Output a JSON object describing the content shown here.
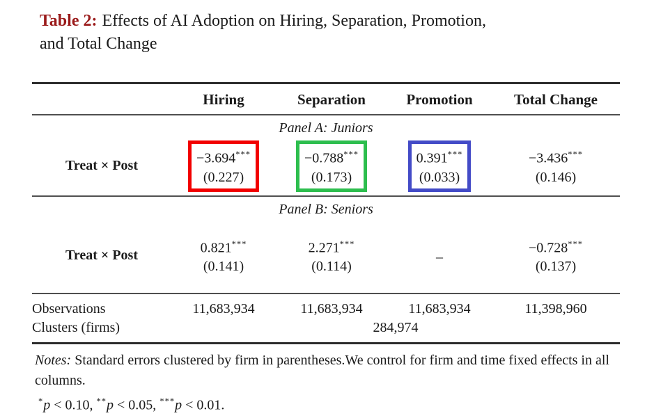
{
  "colors": {
    "title_accent": "#9a1a1a",
    "box_red": "#f20000",
    "box_green": "#2dbe4e",
    "box_blue": "#434bc7",
    "rule_dark": "#2d2d2d"
  },
  "title": {
    "prefix": "Table 2:",
    "line1": "Effects of AI Adoption on Hiring, Separation, Promotion,",
    "line2": "and Total Change"
  },
  "columns": [
    "Hiring",
    "Separation",
    "Promotion",
    "Total Change"
  ],
  "panel_a": {
    "label": "Panel A: Juniors",
    "row_label": "Treat × Post",
    "cells": [
      {
        "coef": "−3.694",
        "stars": "***",
        "se": "(0.227)",
        "box_color": "#f20000"
      },
      {
        "coef": "−0.788",
        "stars": "***",
        "se": "(0.173)",
        "box_color": "#2dbe4e"
      },
      {
        "coef": "0.391",
        "stars": "***",
        "se": "(0.033)",
        "box_color": "#434bc7"
      },
      {
        "coef": "−3.436",
        "stars": "***",
        "se": "(0.146)"
      }
    ]
  },
  "panel_b": {
    "label": "Panel B: Seniors",
    "row_label": "Treat × Post",
    "cells": [
      {
        "coef": "0.821",
        "stars": "***",
        "se": "(0.141)"
      },
      {
        "coef": "2.271",
        "stars": "***",
        "se": "(0.114)"
      },
      {
        "coef": "–",
        "stars": "",
        "se": ""
      },
      {
        "coef": "−0.728",
        "stars": "***",
        "se": "(0.137)"
      }
    ]
  },
  "observations": {
    "label": "Observations",
    "values": [
      "11,683,934",
      "11,683,934",
      "11,683,934",
      "11,398,960"
    ]
  },
  "clusters": {
    "label": "Clusters (firms)",
    "value": "284,974"
  },
  "notes": {
    "prefix": "Notes:",
    "text": "Standard errors clustered by firm in parentheses.We control for firm and time fixed effects in all columns."
  },
  "significance": [
    {
      "stars": "*",
      "p": "p",
      "cond": " < 0.10, "
    },
    {
      "stars": "**",
      "p": "p",
      "cond": " < 0.05, "
    },
    {
      "stars": "***",
      "p": "p",
      "cond": " < 0.01."
    }
  ]
}
